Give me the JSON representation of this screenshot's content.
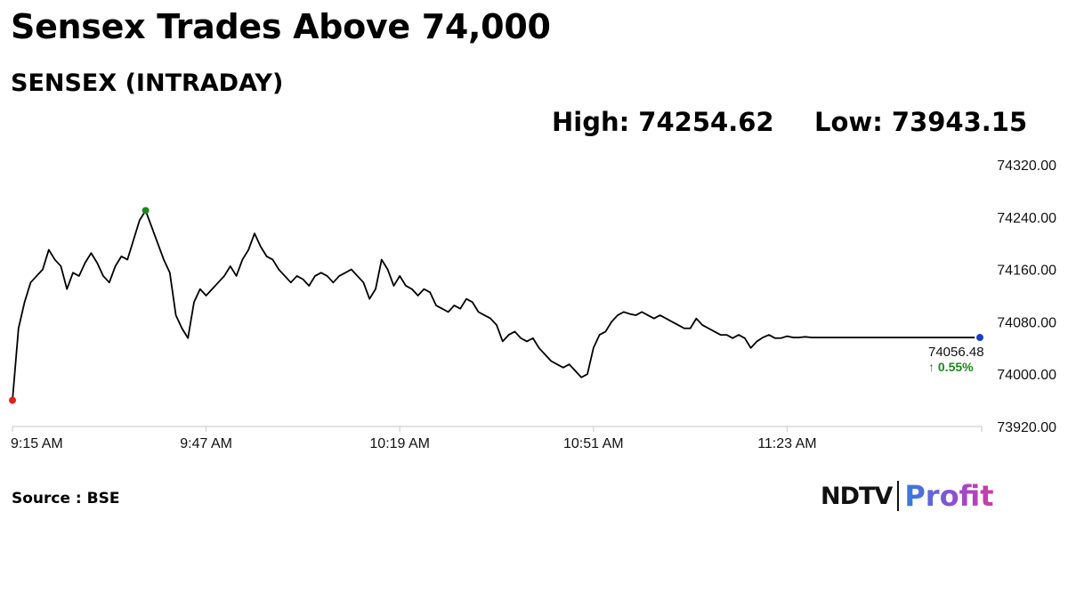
{
  "header": {
    "headline": "Sensex Trades Above 74,000",
    "subtitle": "SENSEX (INTRADAY)",
    "high_label": "High: 74254.62",
    "low_label": "Low: 73943.15"
  },
  "footer": {
    "source": "Source : BSE",
    "brand_primary": "NDTV",
    "brand_secondary": "Profit"
  },
  "chart_data": {
    "type": "line",
    "title": "SENSEX (INTRADAY)",
    "xlabel": "",
    "ylabel": "",
    "x_ticks": [
      "9:15 AM",
      "9:47 AM",
      "10:19 AM",
      "10:51 AM",
      "11:23 AM"
    ],
    "y_ticks": [
      "74320.00",
      "74240.00",
      "74160.00",
      "74080.00",
      "74000.00",
      "73920.00"
    ],
    "ylim": [
      73920,
      74320
    ],
    "grid": false,
    "legend": "none",
    "colors": {
      "line": "#000000",
      "open_marker": "#e0201b",
      "high_marker": "#1a8a1a",
      "last_marker": "#1a3ec8",
      "change": "#1a8a1a"
    },
    "last_price": "74056.48",
    "change_pct": "↑ 0.55%",
    "series": [
      {
        "x_minutes": [
          0,
          1,
          2,
          3,
          4,
          5,
          6,
          7,
          8,
          9,
          10,
          11,
          12,
          13,
          14,
          15,
          16,
          17,
          18,
          19,
          20,
          21,
          22,
          23,
          24,
          25,
          26,
          27,
          28,
          29,
          30,
          31,
          32,
          33,
          34,
          35,
          36,
          37,
          38,
          39,
          40,
          41,
          42,
          43,
          44,
          45,
          46,
          47,
          48,
          49,
          50,
          51,
          52,
          53,
          54,
          55,
          56,
          57,
          58,
          59,
          60,
          61,
          62,
          63,
          64,
          65,
          66,
          67,
          68,
          69,
          70,
          71,
          72,
          73,
          74,
          75,
          76,
          77,
          78,
          79,
          80,
          81,
          82,
          83,
          84,
          85,
          86,
          87,
          88,
          89,
          90,
          91,
          92,
          93,
          94,
          95,
          96,
          97,
          98,
          99,
          100,
          101,
          102,
          103,
          104,
          105,
          106,
          107,
          108,
          109,
          110,
          111,
          112,
          113,
          114,
          115,
          116,
          117,
          118,
          119,
          120,
          121,
          122,
          123,
          124,
          125,
          126,
          127,
          128,
          129,
          130,
          131,
          132,
          133,
          134,
          135,
          136,
          137,
          138,
          139,
          140,
          141,
          142,
          143,
          144,
          145,
          146,
          147,
          148,
          149,
          150,
          151,
          152,
          153,
          154,
          155,
          156,
          157,
          158,
          159
        ],
        "values": [
          73960,
          74070,
          74110,
          74140,
          74150,
          74160,
          74190,
          74175,
          74165,
          74130,
          74155,
          74150,
          74170,
          74185,
          74170,
          74150,
          74140,
          74165,
          74180,
          74175,
          74205,
          74235,
          74250,
          74225,
          74200,
          74175,
          74155,
          74090,
          74070,
          74055,
          74110,
          74130,
          74120,
          74130,
          74140,
          74150,
          74165,
          74150,
          74175,
          74190,
          74215,
          74195,
          74180,
          74175,
          74160,
          74150,
          74140,
          74150,
          74145,
          74135,
          74150,
          74155,
          74150,
          74140,
          74150,
          74155,
          74160,
          74150,
          74140,
          74115,
          74130,
          74175,
          74160,
          74135,
          74150,
          74135,
          74130,
          74120,
          74130,
          74125,
          74105,
          74100,
          74095,
          74105,
          74100,
          74115,
          74110,
          74095,
          74090,
          74085,
          74075,
          74050,
          74060,
          74065,
          74055,
          74050,
          74055,
          74040,
          74030,
          74020,
          74015,
          74010,
          74015,
          74005,
          73995,
          74000,
          74040,
          74060,
          74065,
          74080,
          74090,
          74095,
          74092,
          74090,
          74095,
          74090,
          74085,
          74090,
          74085,
          74080,
          74075,
          74070,
          74070,
          74085,
          74075,
          74070,
          74065,
          74060,
          74060,
          74055,
          74060,
          74055,
          74040,
          74050,
          74056,
          74060,
          74055,
          74055,
          74058,
          74056,
          74056,
          74057,
          74056,
          74056,
          74056,
          74056,
          74056,
          74056,
          74056,
          74056,
          74056,
          74056,
          74056,
          74056,
          74056,
          74056,
          74056,
          74056,
          74056,
          74056,
          74056,
          74056,
          74056,
          74056,
          74056,
          74056,
          74056,
          74056,
          74056,
          74056
        ]
      }
    ]
  }
}
